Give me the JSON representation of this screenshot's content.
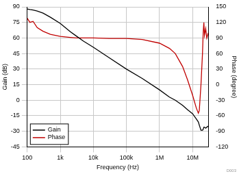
{
  "chart_data": {
    "type": "line",
    "x_label": "Frequency (Hz)",
    "y_label": "Gain (dB)",
    "y2_label": "Phase (degree)",
    "annotation": "D003",
    "log": "x",
    "grid": true,
    "legend": "lower left",
    "x": [
      100,
      120,
      150,
      200,
      300,
      500,
      1000,
      2000,
      3000,
      5000,
      10000,
      30000,
      100000,
      300000,
      1000000,
      2000000,
      3000000,
      5000000,
      7000000,
      10000000,
      13000000,
      15000000,
      16000000,
      18000000,
      20000000,
      21000000,
      22000000,
      23000000,
      25000000,
      27000000,
      30000000
    ],
    "series": [
      {
        "name": "Gain",
        "color": "#000000",
        "axis": "y",
        "values": [
          88,
          87.5,
          87,
          86,
          84,
          80,
          74,
          66,
          62,
          57,
          51,
          41,
          30,
          21,
          10,
          3,
          0,
          -5,
          -9,
          -13,
          -18,
          -21,
          -24,
          -29,
          -29,
          -28,
          -26,
          -26,
          -27,
          -26,
          -25
        ]
      },
      {
        "name": "Phase",
        "color": "#c00000",
        "axis": "y2",
        "values": [
          128,
          120,
          122,
          110,
          103,
          97,
          93,
          91,
          90,
          90,
          90,
          89,
          89,
          87,
          80,
          70,
          60,
          35,
          10,
          -20,
          -45,
          -55,
          -50,
          0,
          60,
          100,
          120,
          95,
          108,
          90,
          100
        ]
      }
    ],
    "xlim": [
      100,
      30000000
    ],
    "xticks": [
      {
        "value": 100,
        "label": "100"
      },
      {
        "value": 1000,
        "label": "1k"
      },
      {
        "value": 10000,
        "label": "10k"
      },
      {
        "value": 100000,
        "label": "100k"
      },
      {
        "value": 1000000,
        "label": "1M"
      },
      {
        "value": 10000000,
        "label": "10M"
      }
    ],
    "ylim": [
      -45,
      90
    ],
    "yticks": [
      -45,
      -30,
      -15,
      0,
      15,
      30,
      45,
      60,
      75,
      90
    ],
    "y2lim": [
      -120,
      150
    ],
    "y2ticks": [
      -120,
      -90,
      -60,
      -30,
      0,
      30,
      60,
      90,
      120,
      150
    ]
  }
}
